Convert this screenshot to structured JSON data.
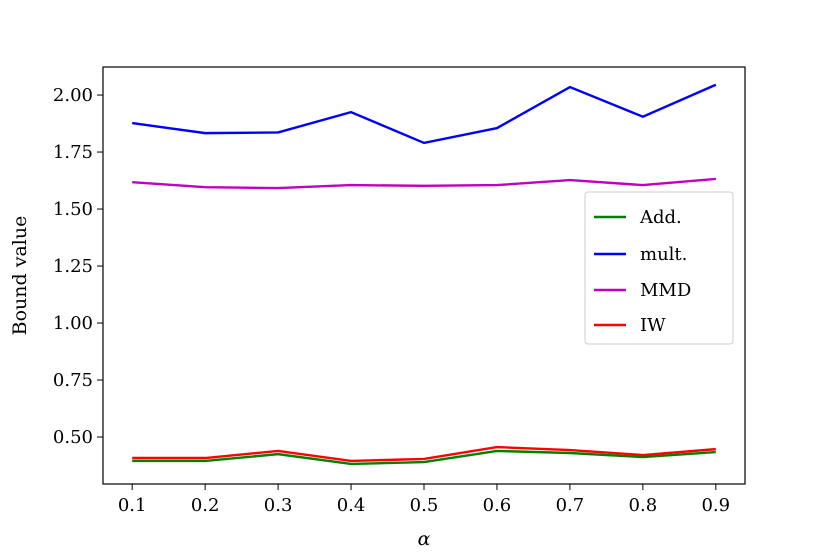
{
  "chart_data": {
    "type": "line",
    "title": "",
    "xlabel": "α",
    "ylabel": "Bound value",
    "x": [
      0.1,
      0.2,
      0.3,
      0.4,
      0.5,
      0.6,
      0.7,
      0.8,
      0.9
    ],
    "xlim": [
      0.06,
      0.94
    ],
    "ylim": [
      0.294,
      2.123
    ],
    "xticks": [
      "0.1",
      "0.2",
      "0.3",
      "0.4",
      "0.5",
      "0.6",
      "0.7",
      "0.8",
      "0.9"
    ],
    "yticks": [
      "0.50",
      "0.75",
      "1.00",
      "1.25",
      "1.50",
      "1.75",
      "2.00"
    ],
    "grid": false,
    "legend_position": "center-right",
    "series": [
      {
        "name": "Add.",
        "color": "#008000",
        "values": [
          0.395,
          0.395,
          0.425,
          0.382,
          0.39,
          0.439,
          0.43,
          0.412,
          0.434
        ]
      },
      {
        "name": "mult.",
        "color": "#0000ff",
        "values": [
          1.877,
          1.833,
          1.836,
          1.925,
          1.79,
          1.855,
          2.035,
          1.905,
          2.045
        ]
      },
      {
        "name": "MMD",
        "color": "#bf00bf",
        "values": [
          1.618,
          1.596,
          1.592,
          1.605,
          1.602,
          1.605,
          1.627,
          1.605,
          1.632
        ]
      },
      {
        "name": "IW",
        "color": "#ff0000",
        "values": [
          0.408,
          0.408,
          0.439,
          0.395,
          0.404,
          0.456,
          0.443,
          0.421,
          0.447
        ]
      }
    ]
  }
}
